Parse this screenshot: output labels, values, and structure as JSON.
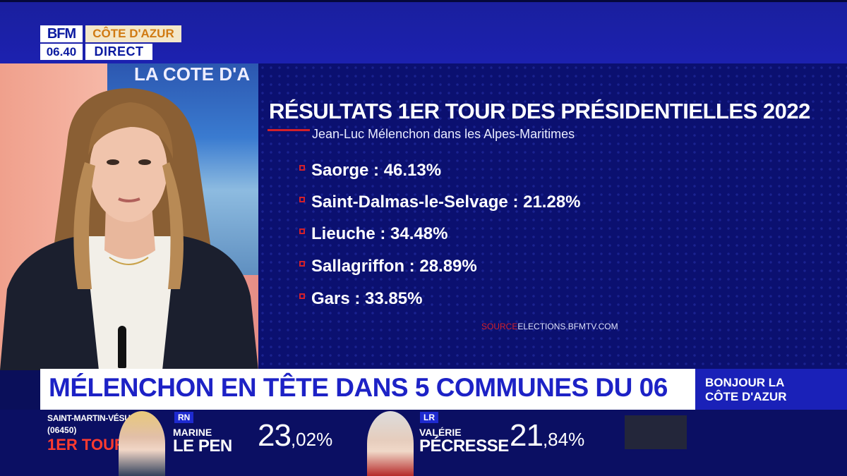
{
  "channel": {
    "logo": "BFM",
    "region": "CÔTE D'AZUR",
    "time": "06.40",
    "live": "DIRECT"
  },
  "studio": {
    "screen_title": "LA COTE D'A"
  },
  "graphic": {
    "title": "RÉSULTATS 1ER TOUR DES PRÉSIDENTIELLES 2022",
    "subtitle": "Jean-Luc Mélenchon dans les Alpes-Maritimes",
    "results": [
      {
        "text": "Saorge : 46.13%"
      },
      {
        "text": "Saint-Dalmas-le-Selvage : 21.28%"
      },
      {
        "text": "Lieuche : 34.48%"
      },
      {
        "text": "Sallagriffon : 28.89%"
      },
      {
        "text": "Gars : 33.85%"
      }
    ],
    "source_label": "SOURCE",
    "source_value": "ELECTIONS.BFMTV.COM"
  },
  "headline": "MÉLENCHON EN TÊTE DANS 5 COMMUNES DU 06",
  "show": {
    "line1": "BONJOUR LA",
    "line2": "CÔTE D'AZUR"
  },
  "ticker": {
    "commune": "SAINT-MARTIN-VÉSUBIE",
    "code": "(06450)",
    "round": "1ER TOUR",
    "candidates": [
      {
        "party": "RN",
        "first_name": "MARINE",
        "last_name": "LE PEN",
        "score_int": "23",
        "score_dec": ",02%"
      },
      {
        "party": "LR",
        "first_name": "VALÉRIE",
        "last_name": "PÉCRESSE",
        "score_int": "21",
        "score_dec": ",84%"
      }
    ]
  },
  "colors": {
    "brand_blue": "#1d22c6",
    "accent_red": "#d4202a",
    "panel_navy": "#0b1070"
  }
}
